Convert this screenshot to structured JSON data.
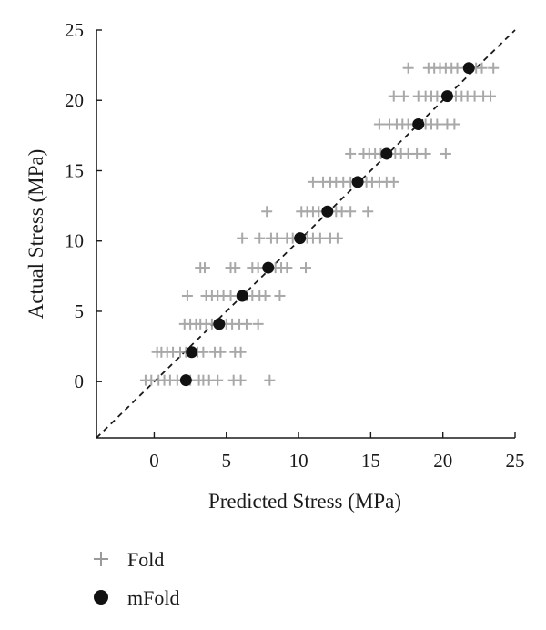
{
  "chart_data": {
    "type": "scatter",
    "xlabel": "Predicted Stress (MPa)",
    "ylabel": "Actual Stress (MPa)",
    "xlim": [
      -4,
      25
    ],
    "ylim": [
      -4,
      25
    ],
    "xticks": [
      0,
      5,
      10,
      15,
      20,
      25
    ],
    "yticks": [
      0,
      5,
      10,
      15,
      20,
      25
    ],
    "grid": false,
    "legend_placement": "bottom-left, below plot",
    "reference_line": {
      "type": "identity",
      "style": "dashed",
      "color": "#1a1a1a"
    },
    "colors": {
      "fold": "#9a9a9a",
      "mfold": "#111111",
      "axis": "#1a1a1a"
    },
    "series": [
      {
        "name": "Fold",
        "marker": "plus",
        "points": [
          [
            -0.6,
            0.1
          ],
          [
            -0.2,
            0.1
          ],
          [
            0.3,
            0.1
          ],
          [
            0.7,
            0.1
          ],
          [
            1.1,
            0.1
          ],
          [
            1.6,
            0.1
          ],
          [
            2.5,
            0.1
          ],
          [
            3.1,
            0.1
          ],
          [
            3.4,
            0.1
          ],
          [
            3.8,
            0.1
          ],
          [
            4.4,
            0.1
          ],
          [
            5.5,
            0.1
          ],
          [
            6.0,
            0.1
          ],
          [
            8.0,
            0.1
          ],
          [
            0.2,
            2.1
          ],
          [
            0.5,
            2.1
          ],
          [
            0.9,
            2.1
          ],
          [
            1.3,
            2.1
          ],
          [
            1.8,
            2.1
          ],
          [
            2.2,
            2.1
          ],
          [
            3.0,
            2.1
          ],
          [
            3.4,
            2.1
          ],
          [
            4.2,
            2.1
          ],
          [
            4.6,
            2.1
          ],
          [
            5.6,
            2.1
          ],
          [
            6.0,
            2.1
          ],
          [
            2.1,
            4.1
          ],
          [
            2.5,
            4.1
          ],
          [
            2.9,
            4.1
          ],
          [
            3.2,
            4.1
          ],
          [
            3.6,
            4.1
          ],
          [
            4.0,
            4.1
          ],
          [
            5.0,
            4.1
          ],
          [
            5.4,
            4.1
          ],
          [
            5.9,
            4.1
          ],
          [
            6.4,
            4.1
          ],
          [
            7.2,
            4.1
          ],
          [
            2.3,
            6.1
          ],
          [
            3.6,
            6.1
          ],
          [
            4.0,
            6.1
          ],
          [
            4.4,
            6.1
          ],
          [
            4.8,
            6.1
          ],
          [
            5.3,
            6.1
          ],
          [
            6.4,
            6.1
          ],
          [
            6.8,
            6.1
          ],
          [
            7.3,
            6.1
          ],
          [
            7.7,
            6.1
          ],
          [
            8.7,
            6.1
          ],
          [
            3.2,
            8.1
          ],
          [
            3.5,
            8.1
          ],
          [
            5.3,
            8.1
          ],
          [
            5.6,
            8.1
          ],
          [
            6.8,
            8.1
          ],
          [
            7.2,
            8.1
          ],
          [
            8.4,
            8.1
          ],
          [
            8.8,
            8.1
          ],
          [
            9.2,
            8.1
          ],
          [
            10.5,
            8.1
          ],
          [
            6.1,
            10.2
          ],
          [
            7.3,
            10.2
          ],
          [
            8.1,
            10.2
          ],
          [
            8.5,
            10.2
          ],
          [
            9.2,
            10.2
          ],
          [
            9.6,
            10.2
          ],
          [
            10.6,
            10.2
          ],
          [
            11.0,
            10.2
          ],
          [
            11.5,
            10.2
          ],
          [
            12.2,
            10.2
          ],
          [
            12.7,
            10.2
          ],
          [
            7.8,
            12.1
          ],
          [
            10.2,
            12.1
          ],
          [
            10.6,
            12.1
          ],
          [
            11.0,
            12.1
          ],
          [
            11.4,
            12.1
          ],
          [
            12.6,
            12.1
          ],
          [
            13.0,
            12.1
          ],
          [
            13.6,
            12.1
          ],
          [
            14.8,
            12.1
          ],
          [
            11.0,
            14.2
          ],
          [
            11.7,
            14.2
          ],
          [
            12.2,
            14.2
          ],
          [
            12.6,
            14.2
          ],
          [
            13.1,
            14.2
          ],
          [
            13.6,
            14.2
          ],
          [
            14.7,
            14.2
          ],
          [
            15.1,
            14.2
          ],
          [
            15.6,
            14.2
          ],
          [
            16.1,
            14.2
          ],
          [
            16.6,
            14.2
          ],
          [
            13.6,
            16.2
          ],
          [
            14.5,
            16.2
          ],
          [
            14.9,
            16.2
          ],
          [
            15.3,
            16.2
          ],
          [
            15.7,
            16.2
          ],
          [
            16.7,
            16.2
          ],
          [
            17.1,
            16.2
          ],
          [
            17.6,
            16.2
          ],
          [
            18.2,
            16.2
          ],
          [
            18.8,
            16.2
          ],
          [
            20.2,
            16.2
          ],
          [
            15.6,
            18.3
          ],
          [
            16.3,
            18.3
          ],
          [
            16.8,
            18.3
          ],
          [
            17.2,
            18.3
          ],
          [
            17.6,
            18.3
          ],
          [
            18.8,
            18.3
          ],
          [
            19.2,
            18.3
          ],
          [
            19.6,
            18.3
          ],
          [
            20.3,
            18.3
          ],
          [
            20.8,
            18.3
          ],
          [
            16.6,
            20.3
          ],
          [
            17.3,
            20.3
          ],
          [
            18.3,
            20.3
          ],
          [
            18.8,
            20.3
          ],
          [
            19.2,
            20.3
          ],
          [
            19.6,
            20.3
          ],
          [
            20.9,
            20.3
          ],
          [
            21.3,
            20.3
          ],
          [
            21.7,
            20.3
          ],
          [
            22.2,
            20.3
          ],
          [
            22.8,
            20.3
          ],
          [
            23.3,
            20.3
          ],
          [
            17.6,
            22.3
          ],
          [
            19.0,
            22.3
          ],
          [
            19.4,
            22.3
          ],
          [
            19.8,
            22.3
          ],
          [
            20.2,
            22.3
          ],
          [
            20.6,
            22.3
          ],
          [
            21.0,
            22.3
          ],
          [
            22.3,
            22.3
          ],
          [
            22.7,
            22.3
          ],
          [
            23.5,
            22.3
          ]
        ]
      },
      {
        "name": "mFold",
        "marker": "filled-circle",
        "points": [
          [
            2.2,
            0.1
          ],
          [
            2.6,
            2.1
          ],
          [
            4.5,
            4.1
          ],
          [
            6.1,
            6.1
          ],
          [
            7.9,
            8.1
          ],
          [
            10.1,
            10.2
          ],
          [
            12.0,
            12.1
          ],
          [
            14.1,
            14.2
          ],
          [
            16.1,
            16.2
          ],
          [
            18.3,
            18.3
          ],
          [
            20.3,
            20.3
          ],
          [
            21.8,
            22.3
          ]
        ]
      }
    ]
  }
}
